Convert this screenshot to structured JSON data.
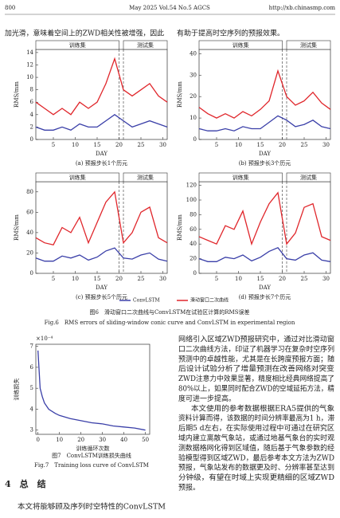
{
  "header": {
    "page": "800",
    "journal": "May 2025 Vol.54 No.5 AGCS",
    "url": "http://xb.chinasmp.com"
  },
  "top_text": {
    "left": "加光滑，意味着空间上的ZWD相关性被增强，因此",
    "right": "有助于提高时空序列的预报效果。"
  },
  "figure6": {
    "caption_zh": "图6　滑动窗口二次曲线与ConvLSTM在试验区计算的RMS误差",
    "caption_en": "Fig.6　RMS errors of sliding-window conic curve and ConvLSTM in experimental region"
  },
  "figure7": {
    "caption_zh": "图7　ConvLSTM训练损失曲线",
    "caption_en": "Fig.7　Training loss curve of ConvLSTM"
  },
  "chart_data": [
    {
      "type": "line",
      "caption": "(a) 预报步长1个历元",
      "xlabel": "DAY",
      "ylabel": "RMS/mm",
      "annotations": [
        "训练集",
        "测试集"
      ],
      "boundaries": [
        20,
        21
      ],
      "x": [
        1,
        3,
        5,
        7,
        9,
        11,
        13,
        15,
        17,
        19,
        21,
        23,
        25,
        27,
        29,
        31
      ],
      "series": [
        {
          "name": "ConvLSTM",
          "color": "#3a3fa8",
          "values": [
            2,
            1.5,
            1.5,
            2,
            1.5,
            2.5,
            2,
            2,
            3,
            4,
            3,
            2,
            2.5,
            3,
            2.5,
            2
          ]
        },
        {
          "name": "滑动窗口二次曲线",
          "color": "#e0262b",
          "values": [
            6,
            5,
            4,
            5,
            4,
            6,
            5,
            6,
            9,
            13,
            8,
            7,
            8,
            9,
            7,
            6
          ]
        }
      ],
      "xlim": [
        1,
        31
      ],
      "ylim": [
        0,
        14.5
      ],
      "xticks": [
        5,
        10,
        15,
        20,
        25,
        30
      ],
      "yticks": [
        0,
        2,
        4,
        6,
        8,
        10,
        12,
        14
      ]
    },
    {
      "type": "line",
      "caption": "(b) 预报步长3个历元",
      "xlabel": "DAY",
      "ylabel": "RMS/mm",
      "annotations": [
        "训练集",
        "测试集"
      ],
      "boundaries": [
        20,
        21
      ],
      "x": [
        1,
        3,
        5,
        7,
        9,
        11,
        13,
        15,
        17,
        19,
        21,
        23,
        25,
        27,
        29,
        31
      ],
      "series": [
        {
          "name": "ConvLSTM",
          "color": "#3a3fa8",
          "values": [
            5,
            4,
            4,
            5,
            4,
            6,
            5,
            5,
            8,
            11,
            9,
            6,
            7,
            9,
            6,
            5
          ]
        },
        {
          "name": "滑动窗口二次曲线",
          "color": "#e0262b",
          "values": [
            15,
            12,
            10,
            12,
            10,
            13,
            11,
            14,
            18,
            32,
            20,
            16,
            18,
            22,
            17,
            14
          ]
        }
      ],
      "xlim": [
        1,
        31
      ],
      "ylim": [
        0,
        42
      ],
      "xticks": [
        5,
        10,
        15,
        20,
        25,
        30
      ],
      "yticks": [
        0,
        10,
        20,
        30,
        40
      ]
    },
    {
      "type": "line",
      "caption": "(c) 预报步长5个历元",
      "xlabel": "DAY",
      "ylabel": "RMS/mm",
      "annotations": [
        "训练集",
        "测试集"
      ],
      "boundaries": [
        20,
        21
      ],
      "x": [
        1,
        3,
        5,
        7,
        9,
        11,
        13,
        15,
        17,
        19,
        21,
        23,
        25,
        27,
        29,
        31
      ],
      "series": [
        {
          "name": "ConvLSTM",
          "color": "#3a3fa8",
          "values": [
            15,
            12,
            12,
            17,
            15,
            18,
            13,
            16,
            22,
            25,
            15,
            14,
            18,
            20,
            14,
            12
          ]
        },
        {
          "name": "滑动窗口二次曲线",
          "color": "#e0262b",
          "values": [
            35,
            30,
            28,
            45,
            40,
            55,
            30,
            50,
            70,
            80,
            30,
            40,
            60,
            65,
            35,
            30
          ]
        }
      ],
      "xlim": [
        1,
        31
      ],
      "ylim": [
        0,
        90
      ],
      "xticks": [
        5,
        10,
        15,
        20,
        25,
        30
      ],
      "yticks": [
        0,
        20,
        40,
        60,
        80
      ]
    },
    {
      "type": "line",
      "caption": "(d) 预报步长7个历元",
      "xlabel": "DAY",
      "ylabel": "RMS/mm",
      "annotations": [
        "训练集",
        "测试集"
      ],
      "boundaries": [
        20,
        21
      ],
      "x": [
        1,
        3,
        5,
        7,
        9,
        11,
        13,
        15,
        17,
        19,
        21,
        23,
        25,
        27,
        29,
        31
      ],
      "series": [
        {
          "name": "ConvLSTM",
          "color": "#3a3fa8",
          "values": [
            20,
            16,
            16,
            22,
            20,
            25,
            17,
            22,
            30,
            35,
            20,
            18,
            25,
            28,
            18,
            16
          ]
        },
        {
          "name": "滑动窗口二次曲线",
          "color": "#e0262b",
          "values": [
            50,
            45,
            40,
            65,
            60,
            85,
            40,
            70,
            95,
            110,
            40,
            55,
            90,
            95,
            50,
            45
          ]
        }
      ],
      "xlim": [
        1,
        31
      ],
      "ylim": [
        0,
        125
      ],
      "xticks": [
        5,
        10,
        15,
        20,
        25,
        30
      ],
      "yticks": [
        0,
        20,
        40,
        60,
        80,
        100,
        120
      ]
    },
    {
      "type": "line",
      "xlabel": "训练循环次数",
      "ylabel": "训练损失",
      "multiplier": "×10⁻⁴",
      "x": [
        0,
        1,
        2,
        3,
        5,
        8,
        10,
        15,
        20,
        25,
        30,
        35,
        40,
        45,
        50
      ],
      "series": [
        {
          "name": "ConvLSTM",
          "color": "#3a3fa8",
          "values": [
            6.8,
            5.0,
            4.6,
            4.3,
            4.0,
            3.8,
            3.7,
            3.55,
            3.45,
            3.35,
            3.3,
            3.2,
            3.15,
            3.1,
            3.0
          ]
        }
      ],
      "xlim": [
        -1,
        52
      ],
      "ylim": [
        2.8,
        7.1
      ],
      "xticks": [
        0,
        10,
        20,
        30,
        40,
        50
      ],
      "yticks": [
        3,
        4,
        5,
        6,
        7
      ]
    }
  ],
  "right_text": [
    "网络引入区域ZWD预报研究中，通过对比滑动窗",
    "口二次曲线方法，印证了机器学习在复杂时空序列",
    "预测中的卓越性能，尤其是在长跨度预报方面；随",
    "后设计试验分析了增量预测在改善网络对突变",
    "ZWD注意力中效果显著，精度相比经典网络提高了",
    "80%以上，如果同时配合ZWD的空域延拓方法，精",
    "度可进一步提高。",
    "本文使用的参考数据根据ERA5提供的气象",
    "资料计算而得，该数据的时间分辨率最高为1 h，滞",
    "后期5 d左右，在实际使用过程中可通过在研究区",
    "域内建立离散气象站，或通过地基气象台的实时观",
    "测数据格网化得到区域值，随后基于气象参数的经",
    "验模型得到区域ZWD，最后参考本文方法为ZWD",
    "预报，气象站发布的数据更及时、分辨率甚至达到",
    "分钟级，有望在时域上实现更精细的区域ZWD",
    "预报。"
  ],
  "section": {
    "heading": "4　总　结",
    "text": "本文将能够顾及序列时空特性的ConvLSTM"
  }
}
